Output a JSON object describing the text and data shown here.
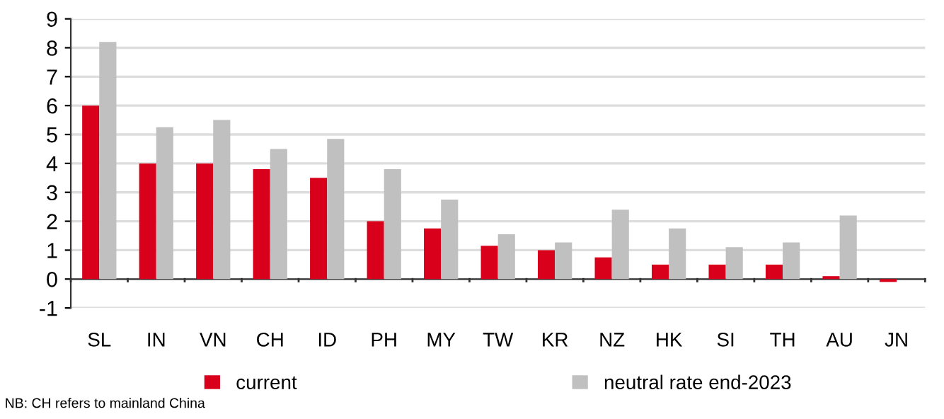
{
  "chart_data": {
    "type": "bar",
    "categories": [
      "SL",
      "IN",
      "VN",
      "CH",
      "ID",
      "PH",
      "MY",
      "TW",
      "KR",
      "NZ",
      "HK",
      "SI",
      "TH",
      "AU",
      "JN"
    ],
    "series": [
      {
        "name": "current",
        "color": "#d9001b",
        "values": [
          6.0,
          4.0,
          4.0,
          3.8,
          3.5,
          2.0,
          1.75,
          1.15,
          1.0,
          0.75,
          0.5,
          0.5,
          0.5,
          0.1,
          -0.1
        ]
      },
      {
        "name": "neutral rate end-2023",
        "color": "#c0c0c0",
        "values": [
          8.2,
          5.25,
          5.5,
          4.5,
          4.85,
          3.8,
          2.75,
          1.55,
          1.27,
          2.4,
          1.75,
          1.1,
          1.27,
          2.2,
          0.0
        ]
      }
    ],
    "ylim": [
      -1,
      9
    ],
    "yticks": [
      -1,
      0,
      1,
      2,
      3,
      4,
      5,
      6,
      7,
      8,
      9
    ],
    "grid": "y",
    "legend": "bottom",
    "annotations": [
      "NB: CH refers to mainland China"
    ]
  }
}
